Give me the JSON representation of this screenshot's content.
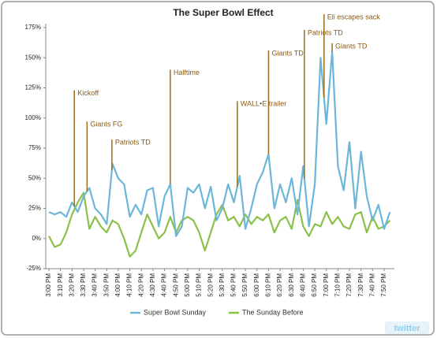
{
  "chart_data": {
    "type": "line",
    "title": "The Super Bowl Effect",
    "categories": [
      "3:00 PM",
      null,
      "3:10 PM",
      null,
      "3:20 PM",
      null,
      "3:30 PM",
      null,
      "3:40 PM",
      null,
      "3:50 PM",
      null,
      "4:00 PM",
      null,
      "4:10 PM",
      null,
      "4:20 PM",
      null,
      "4:30 PM",
      null,
      "4:40 PM",
      null,
      "4:50 PM",
      null,
      "5:00 PM",
      null,
      "5:10 PM",
      null,
      "5:20 PM",
      null,
      "5:30 PM",
      null,
      "5:40 PM",
      null,
      "5:50 PM",
      null,
      "6:00 PM",
      null,
      "6:10 PM",
      null,
      "6:20 PM",
      null,
      "6:30 PM",
      null,
      "6:40 PM",
      null,
      "6:50 PM",
      null,
      "7:00 PM",
      null,
      "7:10 PM",
      null,
      "7:20 PM",
      null,
      "7:30 PM",
      null,
      "7:40 PM",
      null,
      "7:50 PM",
      null
    ],
    "series": [
      {
        "name": "Super Bowl Sunday",
        "color": "#6cb6da",
        "values": [
          22,
          20,
          22,
          18,
          30,
          22,
          35,
          42,
          25,
          20,
          12,
          62,
          50,
          45,
          18,
          28,
          20,
          40,
          42,
          10,
          35,
          45,
          2,
          10,
          42,
          38,
          45,
          25,
          43,
          15,
          25,
          45,
          30,
          52,
          8,
          25,
          45,
          55,
          70,
          25,
          45,
          30,
          50,
          20,
          60,
          10,
          45,
          150,
          95,
          155,
          60,
          40,
          80,
          25,
          72,
          35,
          15,
          28,
          8,
          22
        ]
      },
      {
        "name": "The Sunday Before",
        "color": "#8cc04a",
        "values": [
          2,
          -7,
          -5,
          5,
          20,
          30,
          38,
          8,
          18,
          10,
          5,
          15,
          12,
          0,
          -15,
          -10,
          5,
          20,
          10,
          0,
          5,
          18,
          5,
          15,
          18,
          15,
          5,
          -10,
          5,
          20,
          28,
          15,
          18,
          10,
          20,
          12,
          18,
          15,
          20,
          5,
          15,
          18,
          8,
          32,
          10,
          2,
          12,
          10,
          22,
          12,
          18,
          10,
          8,
          20,
          22,
          5,
          18,
          8,
          10,
          15
        ]
      }
    ],
    "ylim": [
      -25,
      175
    ],
    "yticks": [
      {
        "value": -25,
        "label": "-25%"
      },
      {
        "value": 0,
        "label": "0%"
      },
      {
        "value": 25,
        "label": "25%"
      },
      {
        "value": 50,
        "label": "50%"
      },
      {
        "value": 75,
        "label": "75%"
      },
      {
        "value": 100,
        "label": "100%"
      },
      {
        "value": 125,
        "label": "125%"
      },
      {
        "value": 150,
        "label": "150%"
      },
      {
        "value": 175,
        "label": "175%"
      }
    ],
    "grid": false,
    "legend": "bottom",
    "annotations": [
      {
        "text": "Kickoff",
        "x": 4.4,
        "y": 123
      },
      {
        "text": "Giants FG",
        "x": 6.6,
        "y": 97
      },
      {
        "text": "Patriots TD",
        "x": 10.9,
        "y": 82
      },
      {
        "text": "Halftime",
        "x": 21,
        "y": 140
      },
      {
        "text": "WALL•E trailer",
        "x": 32.6,
        "y": 114
      },
      {
        "text": "Giants TD",
        "x": 38,
        "y": 156
      },
      {
        "text": "Patriots TD",
        "x": 44.2,
        "y": 173
      },
      {
        "text": "Eli escapes sack",
        "x": 47.6,
        "y": 186
      },
      {
        "text": "Giants TD",
        "x": 49,
        "y": 162
      }
    ],
    "badge": "twitter"
  }
}
